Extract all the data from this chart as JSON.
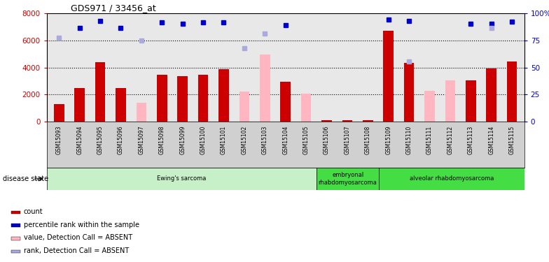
{
  "title": "GDS971 / 33456_at",
  "samples": [
    "GSM15093",
    "GSM15094",
    "GSM15095",
    "GSM15096",
    "GSM15097",
    "GSM15098",
    "GSM15099",
    "GSM15100",
    "GSM15101",
    "GSM15102",
    "GSM15103",
    "GSM15104",
    "GSM15105",
    "GSM15106",
    "GSM15107",
    "GSM15108",
    "GSM15109",
    "GSM15110",
    "GSM15111",
    "GSM15112",
    "GSM15113",
    "GSM15114",
    "GSM15115"
  ],
  "count_values": [
    1300,
    2500,
    4400,
    2500,
    null,
    3450,
    3350,
    3450,
    3850,
    null,
    null,
    2950,
    null,
    100,
    100,
    100,
    6700,
    4350,
    null,
    null,
    3050,
    3950,
    4450
  ],
  "absent_value": [
    null,
    null,
    null,
    null,
    1400,
    null,
    null,
    null,
    null,
    2250,
    4950,
    null,
    2050,
    null,
    null,
    null,
    null,
    null,
    2300,
    3050,
    null,
    null,
    null
  ],
  "percentile_rank": [
    null,
    6900,
    7400,
    6900,
    null,
    7300,
    7200,
    7300,
    7300,
    null,
    null,
    7100,
    null,
    null,
    null,
    null,
    7500,
    7400,
    null,
    null,
    7200,
    7200,
    7350
  ],
  "absent_rank": [
    6200,
    null,
    null,
    null,
    6000,
    null,
    null,
    null,
    null,
    5400,
    6500,
    null,
    null,
    null,
    null,
    null,
    null,
    4450,
    null,
    null,
    null,
    6900,
    null
  ],
  "ylim_left": [
    0,
    8000
  ],
  "ylim_right": [
    0,
    100
  ],
  "yticks_left": [
    0,
    2000,
    4000,
    6000,
    8000
  ],
  "yticks_right": [
    0,
    25,
    50,
    75,
    100
  ],
  "ytick_labels_right": [
    "0",
    "25",
    "50",
    "75",
    "100%"
  ],
  "disease_groups": [
    {
      "label": "Ewing's sarcoma",
      "start": 0,
      "end": 13,
      "light": true
    },
    {
      "label": "embryonal\nrhabdomyosarcoma",
      "start": 13,
      "end": 16,
      "light": false
    },
    {
      "label": "alveolar rhabdomyosarcoma",
      "start": 16,
      "end": 23,
      "light": false
    }
  ],
  "color_count": "#cc0000",
  "color_absent_value": "#ffb6c1",
  "color_rank": "#0000cc",
  "color_absent_rank": "#aaaadd",
  "bg_plot": "#e8e8e8",
  "bg_xtick": "#d0d0d0",
  "color_light_group": "#c8f0c8",
  "color_dark_group": "#44dd44",
  "bar_width": 0.5,
  "dotted_grid_values": [
    2000,
    4000,
    6000
  ],
  "legend_items": [
    {
      "label": "count",
      "color": "#cc0000"
    },
    {
      "label": "percentile rank within the sample",
      "color": "#0000cc"
    },
    {
      "label": "value, Detection Call = ABSENT",
      "color": "#ffb6c1"
    },
    {
      "label": "rank, Detection Call = ABSENT",
      "color": "#aaaadd"
    }
  ]
}
